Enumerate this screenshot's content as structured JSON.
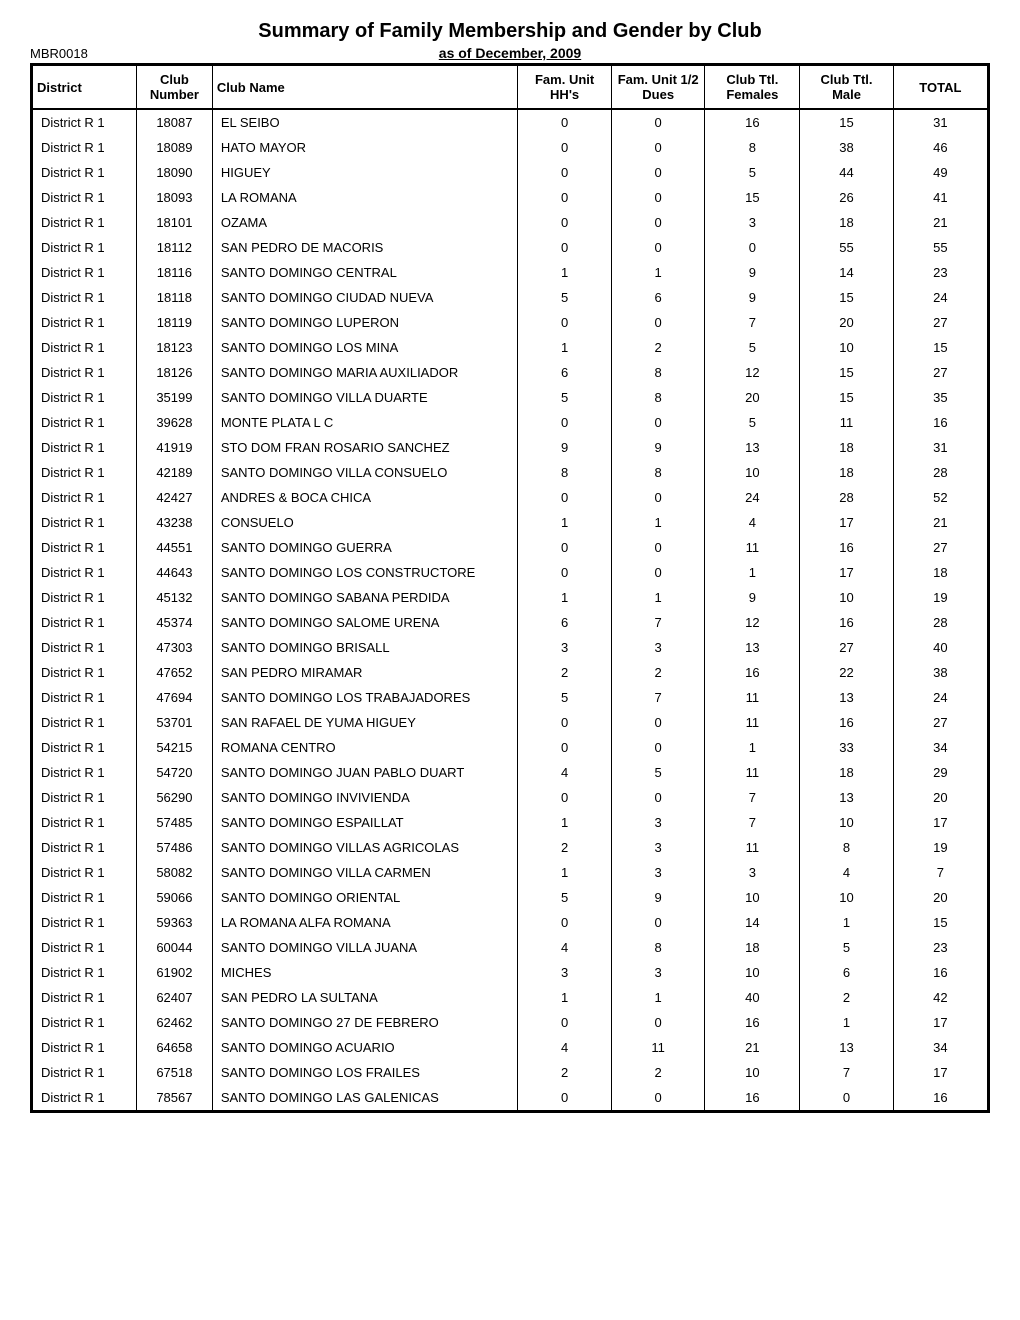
{
  "title": "Summary of Family Membership and Gender by Club",
  "subtitle": "as of December, 2009",
  "report_id": "MBR0018",
  "columns": [
    "District",
    "Club Number",
    "Club Name",
    "Fam. Unit HH's",
    "Fam. Unit 1/2 Dues",
    "Club Ttl. Females",
    "Club Ttl. Male",
    "TOTAL"
  ],
  "rows": [
    [
      "District R 1",
      "18087",
      "EL SEIBO",
      "0",
      "0",
      "16",
      "15",
      "31"
    ],
    [
      "District R 1",
      "18089",
      "HATO MAYOR",
      "0",
      "0",
      "8",
      "38",
      "46"
    ],
    [
      "District R 1",
      "18090",
      "HIGUEY",
      "0",
      "0",
      "5",
      "44",
      "49"
    ],
    [
      "District R 1",
      "18093",
      "LA ROMANA",
      "0",
      "0",
      "15",
      "26",
      "41"
    ],
    [
      "District R 1",
      "18101",
      "OZAMA",
      "0",
      "0",
      "3",
      "18",
      "21"
    ],
    [
      "District R 1",
      "18112",
      "SAN PEDRO DE MACORIS",
      "0",
      "0",
      "0",
      "55",
      "55"
    ],
    [
      "District R 1",
      "18116",
      "SANTO DOMINGO CENTRAL",
      "1",
      "1",
      "9",
      "14",
      "23"
    ],
    [
      "District R 1",
      "18118",
      "SANTO DOMINGO CIUDAD NUEVA",
      "5",
      "6",
      "9",
      "15",
      "24"
    ],
    [
      "District R 1",
      "18119",
      "SANTO DOMINGO LUPERON",
      "0",
      "0",
      "7",
      "20",
      "27"
    ],
    [
      "District R 1",
      "18123",
      "SANTO DOMINGO LOS MINA",
      "1",
      "2",
      "5",
      "10",
      "15"
    ],
    [
      "District R 1",
      "18126",
      "SANTO DOMINGO MARIA AUXILIADOR",
      "6",
      "8",
      "12",
      "15",
      "27"
    ],
    [
      "District R 1",
      "35199",
      "SANTO DOMINGO VILLA DUARTE",
      "5",
      "8",
      "20",
      "15",
      "35"
    ],
    [
      "District R 1",
      "39628",
      "MONTE PLATA L C",
      "0",
      "0",
      "5",
      "11",
      "16"
    ],
    [
      "District R 1",
      "41919",
      "STO DOM FRAN ROSARIO SANCHEZ",
      "9",
      "9",
      "13",
      "18",
      "31"
    ],
    [
      "District R 1",
      "42189",
      "SANTO DOMINGO VILLA CONSUELO",
      "8",
      "8",
      "10",
      "18",
      "28"
    ],
    [
      "District R 1",
      "42427",
      "ANDRES & BOCA CHICA",
      "0",
      "0",
      "24",
      "28",
      "52"
    ],
    [
      "District R 1",
      "43238",
      "CONSUELO",
      "1",
      "1",
      "4",
      "17",
      "21"
    ],
    [
      "District R 1",
      "44551",
      "SANTO DOMINGO GUERRA",
      "0",
      "0",
      "11",
      "16",
      "27"
    ],
    [
      "District R 1",
      "44643",
      "SANTO DOMINGO LOS CONSTRUCTORE",
      "0",
      "0",
      "1",
      "17",
      "18"
    ],
    [
      "District R 1",
      "45132",
      "SANTO DOMINGO SABANA PERDIDA",
      "1",
      "1",
      "9",
      "10",
      "19"
    ],
    [
      "District R 1",
      "45374",
      "SANTO DOMINGO SALOME URENA",
      "6",
      "7",
      "12",
      "16",
      "28"
    ],
    [
      "District R 1",
      "47303",
      "SANTO DOMINGO BRISALL",
      "3",
      "3",
      "13",
      "27",
      "40"
    ],
    [
      "District R 1",
      "47652",
      "SAN PEDRO MIRAMAR",
      "2",
      "2",
      "16",
      "22",
      "38"
    ],
    [
      "District R 1",
      "47694",
      "SANTO DOMINGO LOS TRABAJADORES",
      "5",
      "7",
      "11",
      "13",
      "24"
    ],
    [
      "District R 1",
      "53701",
      "SAN RAFAEL DE YUMA HIGUEY",
      "0",
      "0",
      "11",
      "16",
      "27"
    ],
    [
      "District R 1",
      "54215",
      "ROMANA CENTRO",
      "0",
      "0",
      "1",
      "33",
      "34"
    ],
    [
      "District R 1",
      "54720",
      "SANTO DOMINGO JUAN PABLO DUART",
      "4",
      "5",
      "11",
      "18",
      "29"
    ],
    [
      "District R 1",
      "56290",
      "SANTO DOMINGO INVIVIENDA",
      "0",
      "0",
      "7",
      "13",
      "20"
    ],
    [
      "District R 1",
      "57485",
      "SANTO DOMINGO ESPAILLAT",
      "1",
      "3",
      "7",
      "10",
      "17"
    ],
    [
      "District R 1",
      "57486",
      "SANTO DOMINGO VILLAS AGRICOLAS",
      "2",
      "3",
      "11",
      "8",
      "19"
    ],
    [
      "District R 1",
      "58082",
      "SANTO DOMINGO VILLA CARMEN",
      "1",
      "3",
      "3",
      "4",
      "7"
    ],
    [
      "District R 1",
      "59066",
      "SANTO DOMINGO ORIENTAL",
      "5",
      "9",
      "10",
      "10",
      "20"
    ],
    [
      "District R 1",
      "59363",
      "LA ROMANA ALFA ROMANA",
      "0",
      "0",
      "14",
      "1",
      "15"
    ],
    [
      "District R 1",
      "60044",
      "SANTO DOMINGO VILLA JUANA",
      "4",
      "8",
      "18",
      "5",
      "23"
    ],
    [
      "District R 1",
      "61902",
      "MICHES",
      "3",
      "3",
      "10",
      "6",
      "16"
    ],
    [
      "District R 1",
      "62407",
      "SAN PEDRO LA SULTANA",
      "1",
      "1",
      "40",
      "2",
      "42"
    ],
    [
      "District R 1",
      "62462",
      "SANTO DOMINGO 27 DE FEBRERO",
      "0",
      "0",
      "16",
      "1",
      "17"
    ],
    [
      "District R 1",
      "64658",
      "SANTO DOMINGO ACUARIO",
      "4",
      "11",
      "21",
      "13",
      "34"
    ],
    [
      "District R 1",
      "67518",
      "SANTO DOMINGO LOS FRAILES",
      "2",
      "2",
      "10",
      "7",
      "17"
    ],
    [
      "District R 1",
      "78567",
      "SANTO DOMINGO LAS GALENICAS",
      "0",
      "0",
      "16",
      "0",
      "16"
    ]
  ],
  "styling": {
    "background_color": "#ffffff",
    "border_color": "#000000",
    "title_fontsize": 20,
    "header_fontsize": 13,
    "cell_fontsize": 13,
    "font_family": "Arial"
  }
}
